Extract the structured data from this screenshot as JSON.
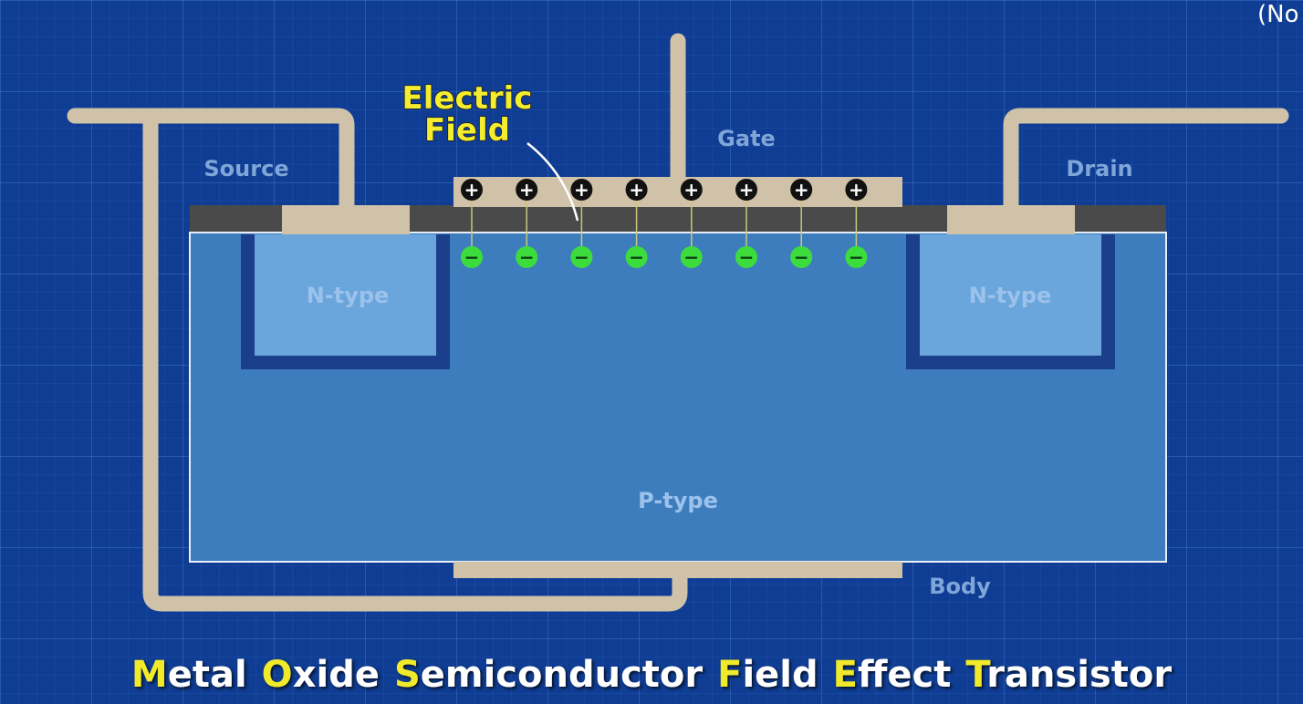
{
  "corner_text": "(No",
  "labels": {
    "source": "Source",
    "drain": "Drain",
    "gate": "Gate",
    "body": "Body",
    "electric_field": [
      "Electric",
      "Field"
    ],
    "n_type_left": "N-type",
    "n_type_right": "N-type",
    "p_type": "P-type"
  },
  "charges": {
    "positive_symbol": "+",
    "negative_symbol": "−",
    "positive_count": 8,
    "negative_count": 8
  },
  "title": {
    "words": [
      {
        "initial": "M",
        "rest": "etal"
      },
      {
        "initial": "O",
        "rest": "xide"
      },
      {
        "initial": "S",
        "rest": "emiconductor"
      },
      {
        "initial": "F",
        "rest": "ield"
      },
      {
        "initial": "E",
        "rest": "ffect"
      },
      {
        "initial": "T",
        "rest": "ransistor"
      }
    ]
  },
  "colors": {
    "background": "#0f3d93",
    "metal": "#cfc2a8",
    "oxide": "#4a4a4a",
    "p_type": "#3d7dbd",
    "n_type": "#6aa6dc",
    "n_type_border": "#1c3f8c",
    "negative_charge": "#3ddc3d",
    "positive_charge": "#111111",
    "highlight": "#f1ea2b"
  }
}
